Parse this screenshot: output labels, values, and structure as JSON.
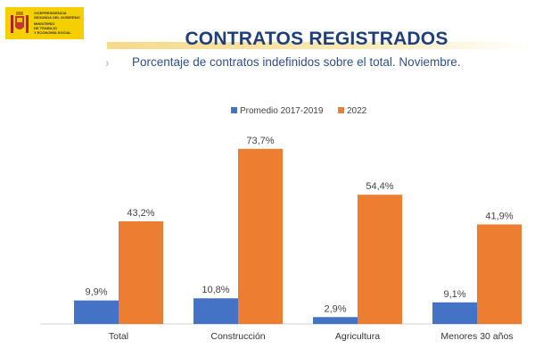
{
  "header": {
    "logo_lines_1": [
      "VICEPRESIDENCIA",
      "SEGUNDA DEL GOBIERNO"
    ],
    "logo_lines_2": [
      "MINISTERIO",
      "DE TRABAJO",
      "Y ECONOMÍA SOCIAL"
    ],
    "title": "CONTRATOS REGISTRADOS",
    "subtitle": "Porcentaje  de  contratos  indefinidos  sobre  el  total.  Noviembre.",
    "chevron": "›"
  },
  "colors": {
    "series_1": "#4472c4",
    "series_2": "#ed7d31",
    "title": "#1f3f78"
  },
  "chart_data": {
    "type": "bar",
    "categories": [
      "Total",
      "Construcción",
      "Agricultura",
      "Menores 30 años"
    ],
    "series": [
      {
        "name": "Promedio 2017-2019",
        "values": [
          9.9,
          10.8,
          2.9,
          9.1
        ],
        "labels": [
          "9,9%",
          "10,8%",
          "2,9%",
          "9,1%"
        ]
      },
      {
        "name": "2022",
        "values": [
          43.2,
          73.7,
          54.4,
          41.9
        ],
        "labels": [
          "43,2%",
          "73,7%",
          "54,4%",
          "41,9%"
        ]
      }
    ],
    "ylim": [
      0,
      80
    ],
    "legend": "top-center",
    "grid": false
  }
}
